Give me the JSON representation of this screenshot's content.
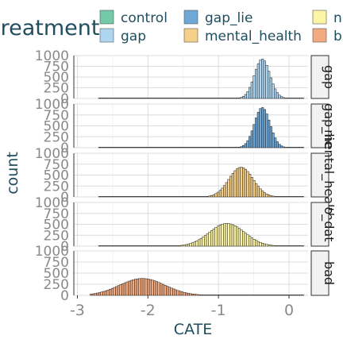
{
  "chart_data": {
    "type": "histogram",
    "facet_layout": "rows",
    "legend": {
      "title": "treatment",
      "placement": "top",
      "entries": [
        {
          "label": "control",
          "color": "#74c9a8"
        },
        {
          "label": "gap",
          "color": "#aed6f1"
        },
        {
          "label": "gap_lie",
          "color": "#6fa8d6"
        },
        {
          "label": "mental_health",
          "color": "#f5d08a"
        },
        {
          "label": "n",
          "color": "#fdf5a6"
        },
        {
          "label": "b",
          "color": "#f2aa80"
        }
      ]
    },
    "xlabel": "CATE",
    "ylabel": "count",
    "xlim": [
      -3.05,
      0.27
    ],
    "x_ticks": [
      -3,
      -2,
      -1,
      0
    ],
    "x_tick_labels": [
      "-3",
      "-2",
      "-1",
      "0"
    ],
    "ylim": [
      0,
      1000
    ],
    "y_ticks": [
      0,
      250,
      500,
      750,
      1000
    ],
    "y_tick_labels": [
      "0",
      "250",
      "500",
      "750",
      "1000"
    ],
    "grid": true,
    "bin_width": 0.03,
    "panels": [
      {
        "strip": "gap",
        "fill": "#aed6f1",
        "mean": -0.38,
        "sd": 0.11,
        "peak": 920,
        "x_range": [
          -2.7,
          0.2
        ]
      },
      {
        "strip": "gap_lie",
        "fill": "#6fa8d6",
        "mean": -0.38,
        "sd": 0.11,
        "peak": 920,
        "x_range": [
          -2.7,
          0.2
        ]
      },
      {
        "strip": "mental_health",
        "fill": "#f5d08a",
        "mean": -0.68,
        "sd": 0.17,
        "peak": 680,
        "x_range": [
          -2.7,
          0.2
        ]
      },
      {
        "strip": "o_dat",
        "fill": "#fdf5a6",
        "mean": -0.88,
        "sd": 0.25,
        "peak": 520,
        "x_range": [
          -2.7,
          0.2
        ]
      },
      {
        "strip": "bad",
        "fill": "#f2aa80",
        "mean": -2.08,
        "sd": 0.32,
        "peak": 380,
        "x_range": [
          -2.82,
          0.2
        ]
      }
    ]
  }
}
